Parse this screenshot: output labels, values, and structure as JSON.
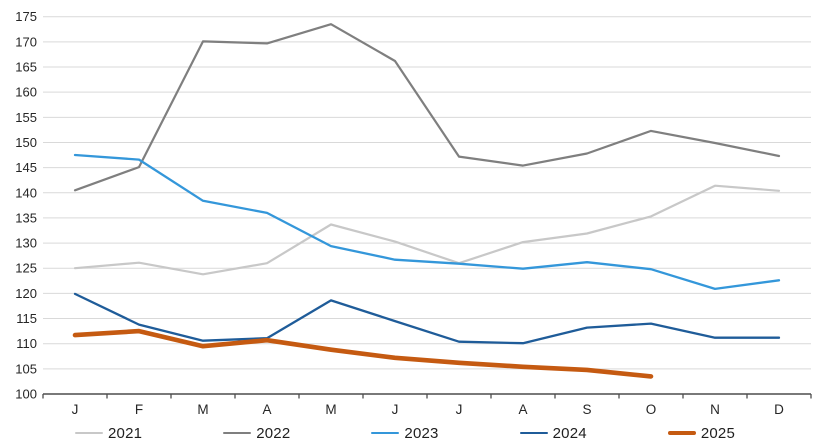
{
  "chart_data": {
    "type": "line",
    "title": "",
    "xlabel": "",
    "ylabel": "",
    "x_categories": [
      "J",
      "F",
      "M",
      "A",
      "M",
      "J",
      "J",
      "A",
      "S",
      "O",
      "N",
      "D"
    ],
    "y_ticks": [
      100,
      105,
      110,
      115,
      120,
      125,
      130,
      135,
      140,
      145,
      150,
      155,
      160,
      165,
      170,
      175
    ],
    "ylim": [
      100,
      175
    ],
    "grid": "horizontal",
    "legend_position": "bottom",
    "series": [
      {
        "name": "2021",
        "color": "#C8C8C8",
        "stroke_width": 2.2,
        "values": [
          125.0,
          126.1,
          123.8,
          126.0,
          133.7,
          130.3,
          126.0,
          130.2,
          131.9,
          135.3,
          141.4,
          140.4
        ]
      },
      {
        "name": "2022",
        "color": "#7F7F7F",
        "stroke_width": 2.2,
        "values": [
          140.5,
          145.1,
          170.1,
          169.7,
          173.5,
          166.2,
          147.2,
          145.4,
          147.8,
          152.3,
          149.9,
          147.3
        ]
      },
      {
        "name": "2023",
        "color": "#3497DA",
        "stroke_width": 2.3,
        "values": [
          147.5,
          146.6,
          138.4,
          136.0,
          129.4,
          126.7,
          125.9,
          124.9,
          126.2,
          124.8,
          120.9,
          122.6
        ]
      },
      {
        "name": "2024",
        "color": "#1F5C99",
        "stroke_width": 2.3,
        "values": [
          119.9,
          113.8,
          110.6,
          111.1,
          118.6,
          114.5,
          110.4,
          110.1,
          113.2,
          114.0,
          111.2,
          111.2
        ]
      },
      {
        "name": "2025",
        "color": "#C55A11",
        "stroke_width": 4.6,
        "values": [
          111.7,
          112.5,
          109.5,
          110.7,
          108.8,
          107.2,
          106.2,
          105.4,
          104.8,
          103.5,
          null,
          null
        ]
      }
    ]
  },
  "style": {
    "gridline_color": "#D9D9D9",
    "axis_line_color": "#4D4D4D",
    "tick_color": "#4D4D4D",
    "label_color": "#262626"
  }
}
